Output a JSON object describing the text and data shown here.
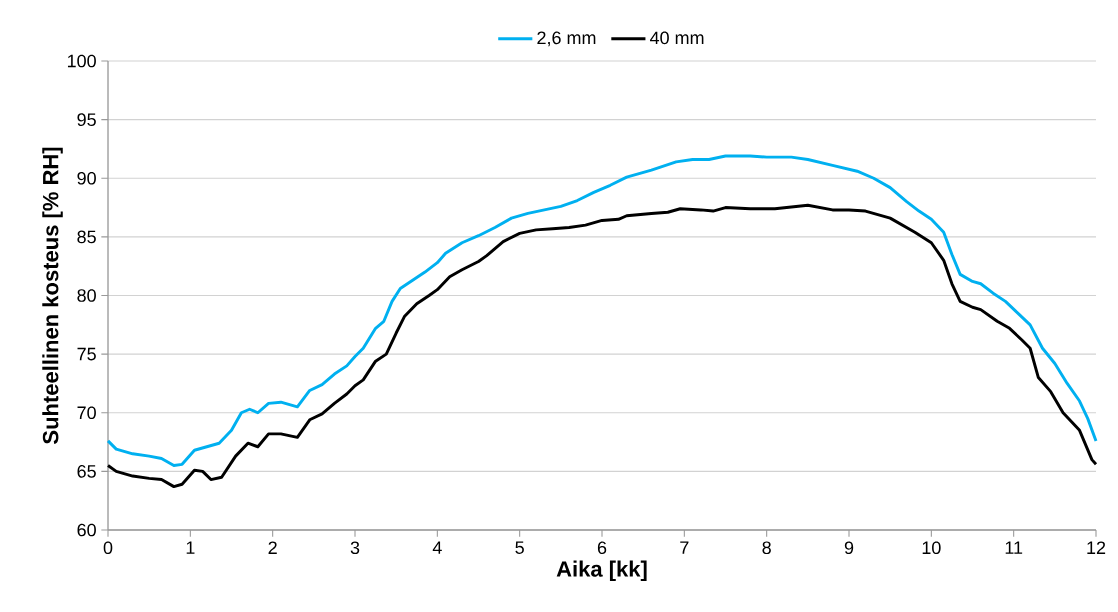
{
  "chart_data": {
    "type": "line",
    "xlabel": "Aika [kk]",
    "ylabel": "Suhteellinen kosteus [% RH]",
    "xlim": [
      0,
      12
    ],
    "xticks": [
      0,
      1,
      2,
      3,
      4,
      5,
      6,
      7,
      8,
      9,
      10,
      11,
      12
    ],
    "ylim": [
      60,
      100
    ],
    "yticks": [
      60,
      65,
      70,
      75,
      80,
      85,
      90,
      95,
      100
    ],
    "grid": "y",
    "legend": "top",
    "marker": "none",
    "line_style": "solid",
    "series": [
      {
        "name": "2,6 mm",
        "color": "#00b0f0",
        "x": [
          0,
          0.1,
          0.3,
          0.5,
          0.65,
          0.8,
          0.9,
          1.05,
          1.2,
          1.35,
          1.5,
          1.62,
          1.72,
          1.82,
          1.95,
          2.1,
          2.3,
          2.45,
          2.6,
          2.75,
          2.9,
          3.0,
          3.1,
          3.25,
          3.35,
          3.45,
          3.55,
          3.7,
          3.85,
          4.0,
          4.1,
          4.3,
          4.5,
          4.7,
          4.9,
          5.1,
          5.3,
          5.5,
          5.7,
          5.9,
          6.1,
          6.3,
          6.6,
          6.9,
          7.1,
          7.3,
          7.5,
          7.8,
          8.0,
          8.3,
          8.5,
          8.8,
          9.1,
          9.3,
          9.5,
          9.7,
          9.85,
          10.0,
          10.15,
          10.25,
          10.35,
          10.5,
          10.6,
          10.75,
          10.9,
          11.05,
          11.2,
          11.35,
          11.5,
          11.65,
          11.8,
          11.9,
          12.0
        ],
        "values": [
          67.6,
          66.9,
          66.5,
          66.3,
          66.1,
          65.5,
          65.6,
          66.8,
          67.1,
          67.4,
          68.5,
          70.0,
          70.3,
          70.0,
          70.8,
          70.9,
          70.5,
          71.9,
          72.4,
          73.3,
          74.0,
          74.8,
          75.5,
          77.2,
          77.8,
          79.5,
          80.6,
          81.3,
          82.0,
          82.8,
          83.6,
          84.5,
          85.1,
          85.8,
          86.6,
          87.0,
          87.3,
          87.6,
          88.1,
          88.8,
          89.4,
          90.1,
          90.7,
          91.4,
          91.6,
          91.6,
          91.9,
          91.9,
          91.8,
          91.8,
          91.6,
          91.1,
          90.6,
          90.0,
          89.2,
          88.0,
          87.2,
          86.5,
          85.4,
          83.5,
          81.8,
          81.2,
          81.0,
          80.2,
          79.5,
          78.5,
          77.5,
          75.5,
          74.2,
          72.5,
          71.0,
          69.5,
          67.6
        ]
      },
      {
        "name": "40 mm",
        "color": "#000000",
        "x": [
          0,
          0.1,
          0.3,
          0.5,
          0.65,
          0.8,
          0.9,
          1.05,
          1.15,
          1.25,
          1.38,
          1.55,
          1.7,
          1.82,
          1.95,
          2.1,
          2.3,
          2.45,
          2.6,
          2.75,
          2.9,
          3.0,
          3.1,
          3.25,
          3.38,
          3.5,
          3.6,
          3.75,
          3.9,
          4.0,
          4.15,
          4.3,
          4.5,
          4.6,
          4.8,
          5.0,
          5.2,
          5.4,
          5.6,
          5.8,
          6.0,
          6.2,
          6.3,
          6.6,
          6.8,
          6.95,
          7.2,
          7.35,
          7.5,
          7.8,
          8.1,
          8.5,
          8.8,
          9.0,
          9.2,
          9.5,
          9.8,
          10.0,
          10.15,
          10.25,
          10.35,
          10.5,
          10.6,
          10.8,
          10.95,
          11.1,
          11.2,
          11.3,
          11.45,
          11.6,
          11.8,
          11.95,
          12.0
        ],
        "values": [
          65.5,
          65.0,
          64.6,
          64.4,
          64.3,
          63.7,
          63.9,
          65.1,
          65.0,
          64.3,
          64.5,
          66.3,
          67.4,
          67.1,
          68.2,
          68.2,
          67.9,
          69.4,
          69.9,
          70.8,
          71.6,
          72.3,
          72.8,
          74.4,
          75.0,
          76.8,
          78.2,
          79.3,
          80.0,
          80.5,
          81.6,
          82.2,
          82.9,
          83.4,
          84.6,
          85.3,
          85.6,
          85.7,
          85.8,
          86.0,
          86.4,
          86.5,
          86.8,
          87.0,
          87.1,
          87.4,
          87.3,
          87.2,
          87.5,
          87.4,
          87.4,
          87.7,
          87.3,
          87.3,
          87.2,
          86.6,
          85.4,
          84.5,
          83.0,
          81.0,
          79.5,
          79.0,
          78.8,
          77.8,
          77.2,
          76.2,
          75.5,
          73.0,
          71.8,
          70.0,
          68.5,
          66.0,
          65.6
        ]
      }
    ]
  }
}
